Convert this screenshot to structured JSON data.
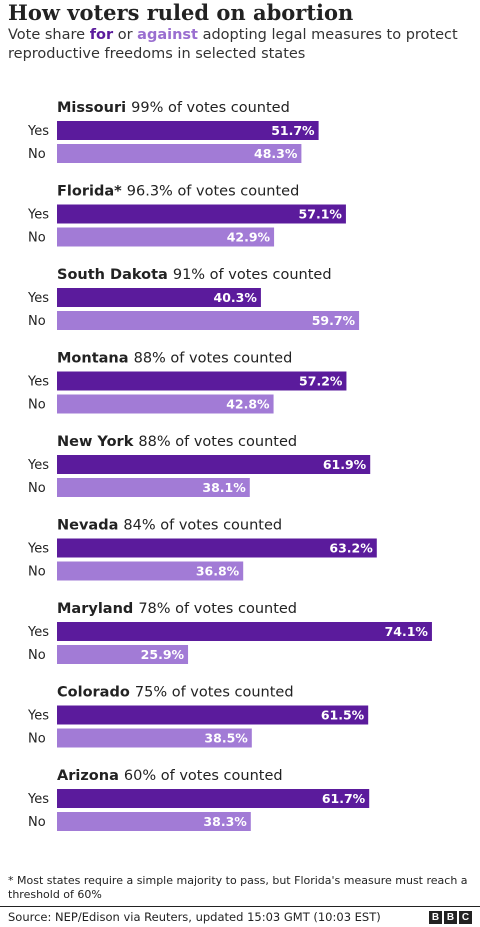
{
  "header": {
    "title": "How voters ruled on abortion",
    "subtitle_pre": "Vote share ",
    "subtitle_for": "for",
    "subtitle_mid": " or ",
    "subtitle_against": "against",
    "subtitle_post": " adopting legal measures to protect reproductive freedoms in selected states"
  },
  "colors": {
    "for": "#5b1b9c",
    "against": "#a27bd6"
  },
  "chart_data": {
    "type": "bar",
    "orientation": "horizontal",
    "row_labels": [
      "Yes",
      "No"
    ],
    "xlim": [
      0,
      100
    ],
    "groups": [
      {
        "state": "Missouri",
        "counted": "99% of votes counted",
        "yes": 51.7,
        "no": 48.3
      },
      {
        "state": "Florida*",
        "counted": "96.3% of votes counted",
        "yes": 57.1,
        "no": 42.9
      },
      {
        "state": "South Dakota",
        "counted": "91% of votes counted",
        "yes": 40.3,
        "no": 59.7
      },
      {
        "state": "Montana",
        "counted": "88% of votes counted",
        "yes": 57.2,
        "no": 42.8
      },
      {
        "state": "New York",
        "counted": "88% of votes counted",
        "yes": 61.9,
        "no": 38.1
      },
      {
        "state": "Nevada",
        "counted": "84% of votes counted",
        "yes": 63.2,
        "no": 36.8
      },
      {
        "state": "Maryland",
        "counted": "78% of votes counted",
        "yes": 74.1,
        "no": 25.9
      },
      {
        "state": "Colorado",
        "counted": "75% of votes counted",
        "yes": 61.5,
        "no": 38.5
      },
      {
        "state": "Arizona",
        "counted": "60% of votes counted",
        "yes": 61.7,
        "no": 38.3
      }
    ]
  },
  "footer": {
    "footnote": "* Most states require a simple majority to pass, but Florida's measure must reach a threshold of 60%",
    "source": "Source: NEP/Edison via Reuters, updated 15:03 GMT (10:03 EST)",
    "logo_letters": [
      "B",
      "B",
      "C"
    ]
  }
}
